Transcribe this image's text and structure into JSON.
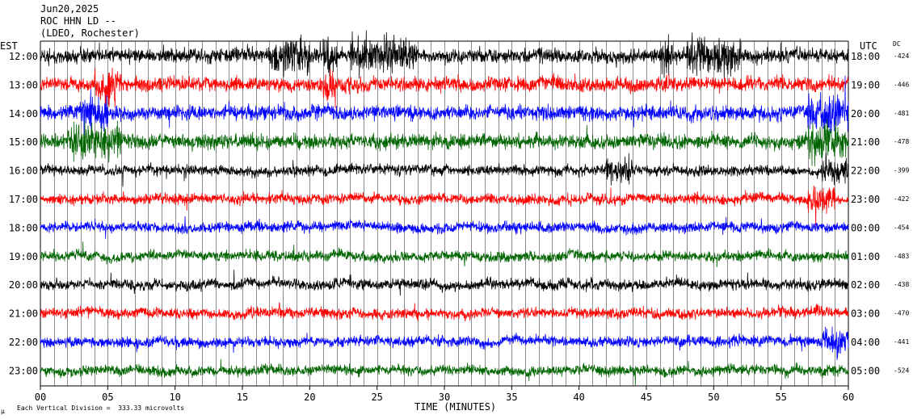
{
  "header": {
    "line1": "Jun20,2025",
    "line2": "ROC HHN LD --",
    "line3": "(LDEO, Rochester)"
  },
  "axis_labels": {
    "left_zone": "EST",
    "right_zone": "UTC",
    "dc": "DC",
    "x_title": "TIME (MINUTES)"
  },
  "footer": {
    "mark": "µ",
    "scale_note": "Each Vertical Division =  333.33 microvolts"
  },
  "colors": {
    "trace_cycle": [
      "#000000",
      "#ff0000",
      "#0000ff",
      "#006400"
    ],
    "grid": "#000000",
    "text": "#000000"
  },
  "chart_data": {
    "type": "line",
    "title": "Jun20,2025 ROC HHN LD -- (LDEO, Rochester)",
    "xlabel": "TIME (MINUTES)",
    "xlim": [
      0,
      60
    ],
    "x_ticks": [
      "00",
      "05",
      "10",
      "15",
      "20",
      "25",
      "30",
      "35",
      "40",
      "45",
      "50",
      "55",
      "60"
    ],
    "grid": "vertical lines every minute",
    "series": [
      {
        "est": "12:00",
        "utc": "18:00",
        "dc": "-424",
        "color": "#000000",
        "noise_level": "high",
        "event_windows_min": [
          [
            17,
            20
          ],
          [
            21,
            22
          ],
          [
            23,
            28
          ],
          [
            46,
            47
          ],
          [
            48,
            52
          ]
        ]
      },
      {
        "est": "13:00",
        "utc": "19:00",
        "dc": "-446",
        "color": "#ff0000",
        "noise_level": "high",
        "event_windows_min": [
          [
            4,
            6
          ],
          [
            21,
            22
          ]
        ]
      },
      {
        "est": "14:00",
        "utc": "20:00",
        "dc": "-481",
        "color": "#0000ff",
        "noise_level": "high",
        "event_windows_min": [
          [
            3,
            5
          ],
          [
            57,
            60
          ]
        ]
      },
      {
        "est": "15:00",
        "utc": "21:00",
        "dc": "-478",
        "color": "#006400",
        "noise_level": "high",
        "event_windows_min": [
          [
            2,
            6
          ],
          [
            57,
            60
          ]
        ]
      },
      {
        "est": "16:00",
        "utc": "22:00",
        "dc": "-399",
        "color": "#000000",
        "noise_level": "medium",
        "event_windows_min": [
          [
            42,
            44
          ],
          [
            58,
            60
          ]
        ]
      },
      {
        "est": "17:00",
        "utc": "23:00",
        "dc": "-422",
        "color": "#ff0000",
        "noise_level": "medium",
        "event_windows_min": [
          [
            57,
            59
          ]
        ]
      },
      {
        "est": "18:00",
        "utc": "00:00",
        "dc": "-454",
        "color": "#0000ff",
        "noise_level": "medium",
        "event_windows_min": []
      },
      {
        "est": "19:00",
        "utc": "01:00",
        "dc": "-483",
        "color": "#006400",
        "noise_level": "medium",
        "event_windows_min": []
      },
      {
        "est": "20:00",
        "utc": "02:00",
        "dc": "-438",
        "color": "#000000",
        "noise_level": "medium",
        "event_windows_min": []
      },
      {
        "est": "21:00",
        "utc": "03:00",
        "dc": "-470",
        "color": "#ff0000",
        "noise_level": "medium",
        "event_windows_min": []
      },
      {
        "est": "22:00",
        "utc": "04:00",
        "dc": "-441",
        "color": "#0000ff",
        "noise_level": "medium",
        "event_windows_min": [
          [
            58,
            60
          ]
        ]
      },
      {
        "est": "23:00",
        "utc": "05:00",
        "dc": "-524",
        "color": "#006400",
        "noise_level": "medium",
        "event_windows_min": []
      }
    ]
  }
}
